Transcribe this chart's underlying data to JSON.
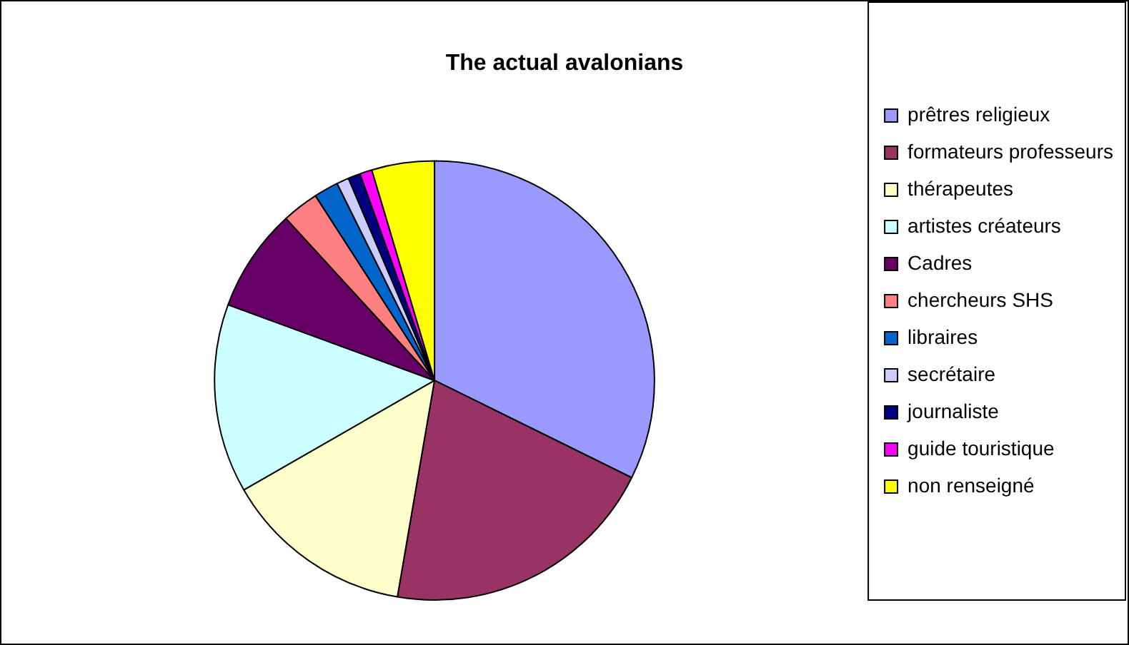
{
  "chart_data": {
    "type": "pie",
    "title": "The actual avalonians",
    "categories": [
      "prêtres religieux",
      "formateurs professeurs",
      "thérapeutes",
      "artistes créateurs",
      "Cadres",
      "chercheurs SHS",
      "libraires",
      "secrétaire",
      "journaliste",
      "guide touristique",
      "non renseigné"
    ],
    "values": [
      32.3,
      20.4,
      14,
      13.9,
      7.6,
      2.7,
      1.8,
      0.9,
      0.9,
      0.9,
      4.6
    ],
    "colors": [
      "#9999ff",
      "#993366",
      "#ffffcc",
      "#ccffff",
      "#660066",
      "#ff8080",
      "#0066cc",
      "#ccccff",
      "#000080",
      "#ff00ff",
      "#ffff00"
    ],
    "legend": "right"
  }
}
